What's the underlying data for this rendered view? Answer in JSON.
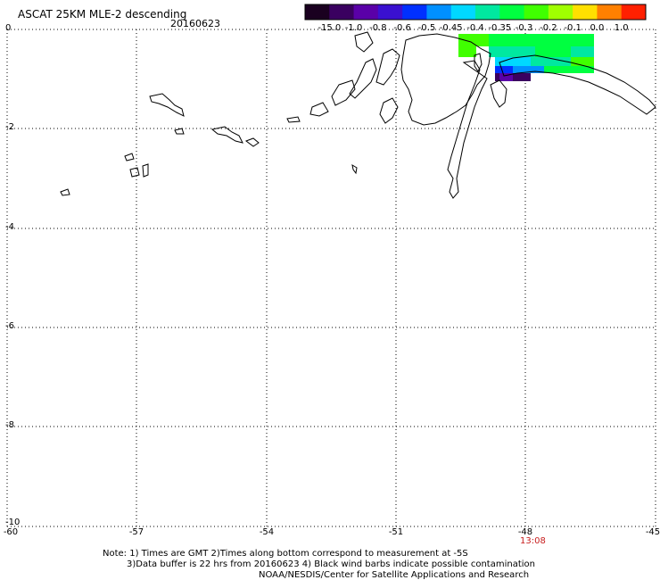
{
  "header": {
    "title": "ASCAT 25KM MLE-2 descending",
    "date": "20160623"
  },
  "colorbar": {
    "labels": [
      "-15.0",
      "-1.0",
      "-0.8",
      "-0.6",
      "-0.5",
      "-0.45",
      "-0.4",
      "-0.35",
      "-0.3",
      "-0.2",
      "-0.1",
      "0.0",
      "1.0"
    ],
    "colors": [
      "#1a0020",
      "#3a0060",
      "#5a00a8",
      "#3a10d0",
      "#0030ff",
      "#0090ff",
      "#00d8ff",
      "#00e8a0",
      "#00ff40",
      "#40ff00",
      "#a0ff00",
      "#ffe000",
      "#ff8000",
      "#ff2000"
    ]
  },
  "axes": {
    "y_ticks": [
      "0",
      "-2",
      "-4",
      "-6",
      "-8",
      "-10"
    ],
    "x_ticks": [
      "-60",
      "-57",
      "-54",
      "-51",
      "-48",
      "-45"
    ]
  },
  "time_label": "13:08",
  "footer": {
    "line1": "Note: 1) Times are GMT 2)Times along bottom correspond to measurement at -5S",
    "line2": "3)Data buffer is 22 hrs from 20160623 4) Black wind barbs indicate possible contamination",
    "line3": "NOAA/NESDIS/Center for Satellite Applications and Research"
  }
}
